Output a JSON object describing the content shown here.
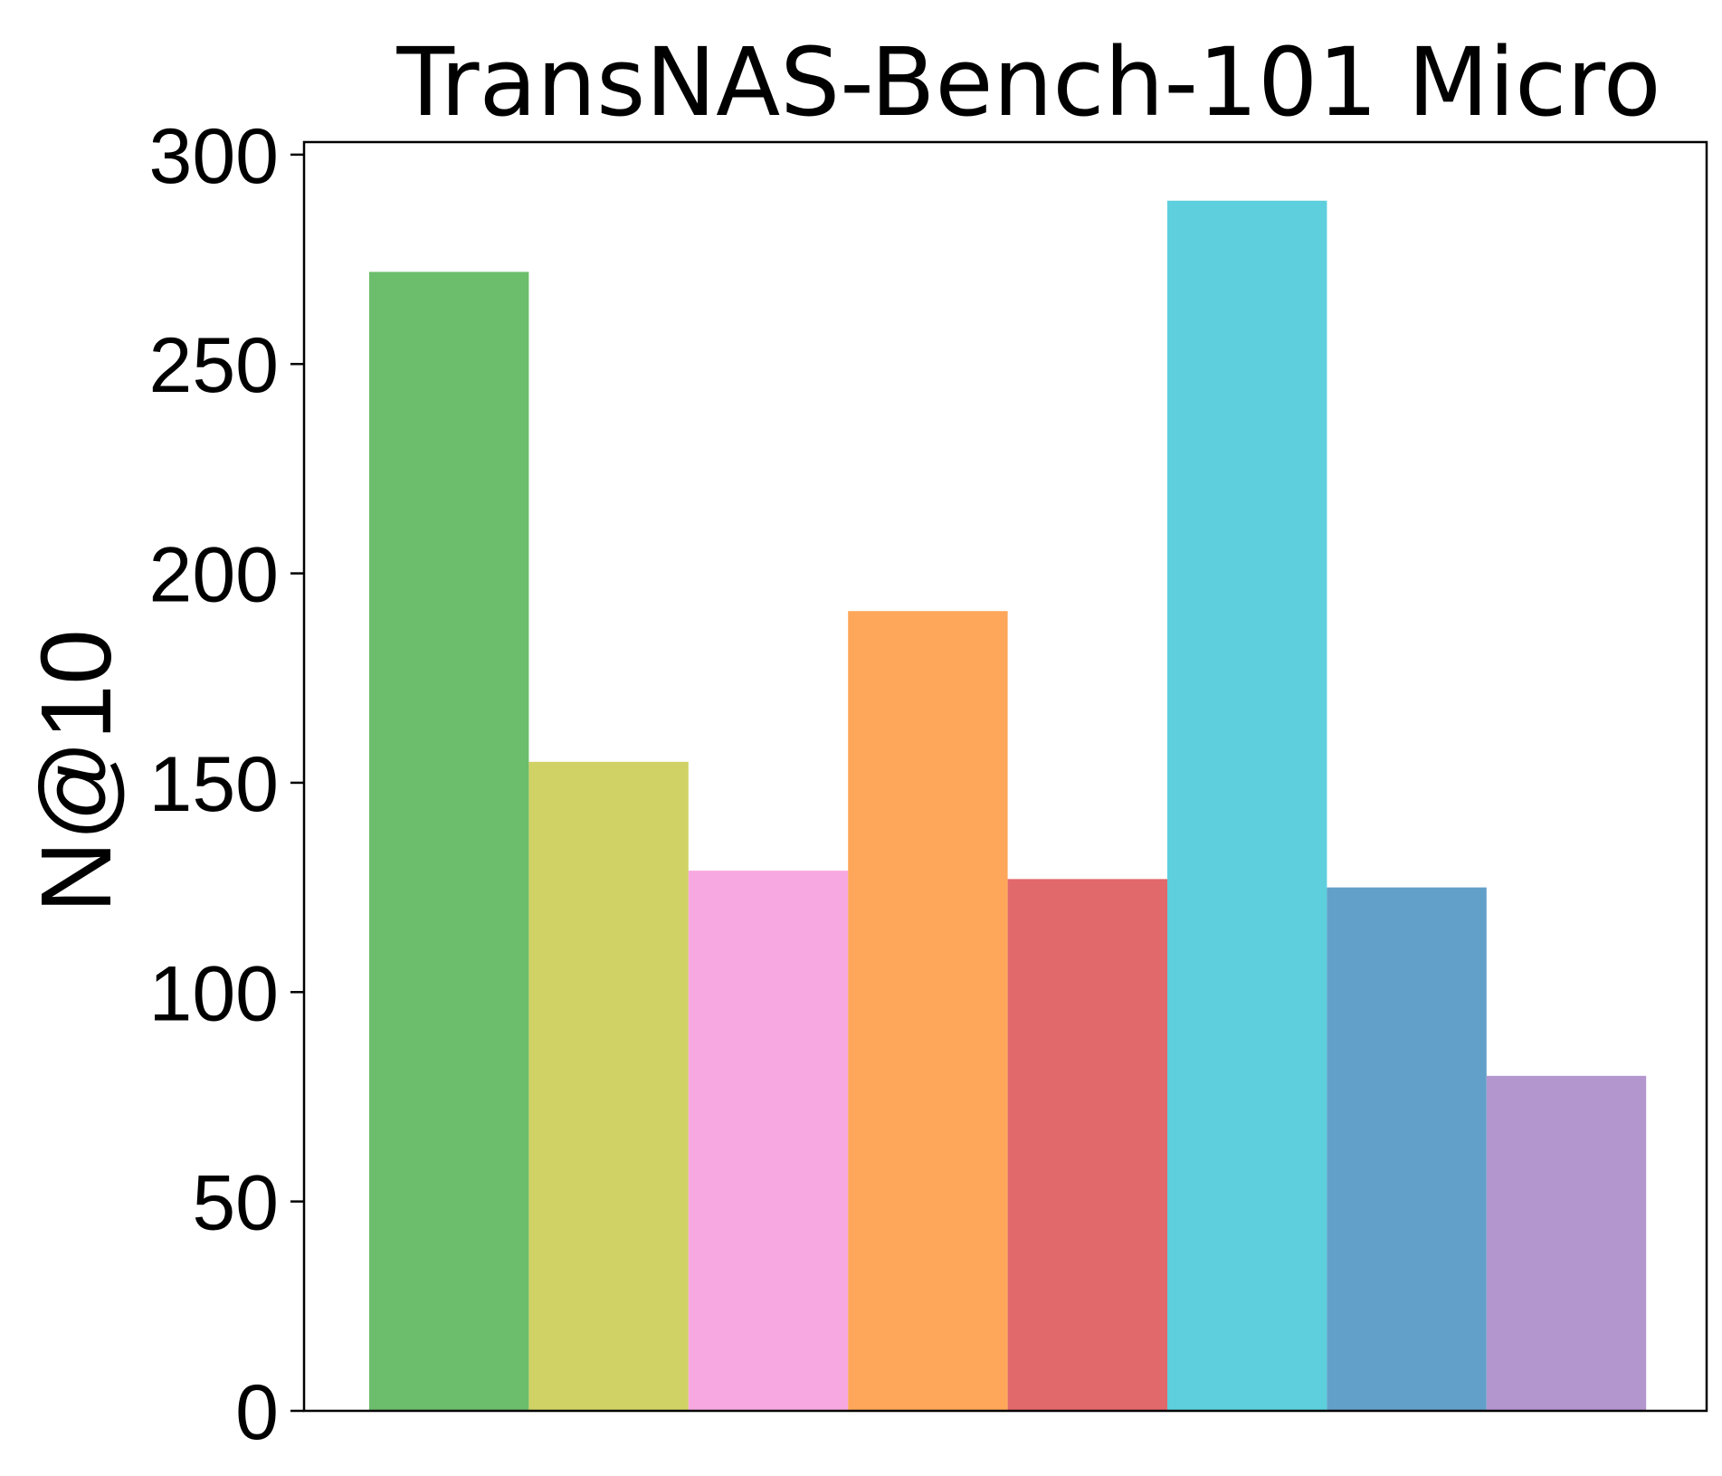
{
  "chart_data": {
    "type": "bar",
    "title": "TransNAS-Bench-101 Micro",
    "xlabel": "",
    "ylabel": "N@10",
    "ylim": [
      0,
      303
    ],
    "yticks": [
      "0",
      "50",
      "100",
      "150",
      "200",
      "250",
      "300"
    ],
    "grid": false,
    "legend": "none",
    "series": [
      {
        "values": [
          272,
          155,
          129,
          191,
          127,
          289,
          125,
          80
        ]
      }
    ],
    "colors": [
      "#6cbd6c",
      "#d0d266",
      "#f8a8e0",
      "#fea75a",
      "#e2696b",
      "#5ecfdc",
      "#63a0c9",
      "#b496cf"
    ]
  }
}
